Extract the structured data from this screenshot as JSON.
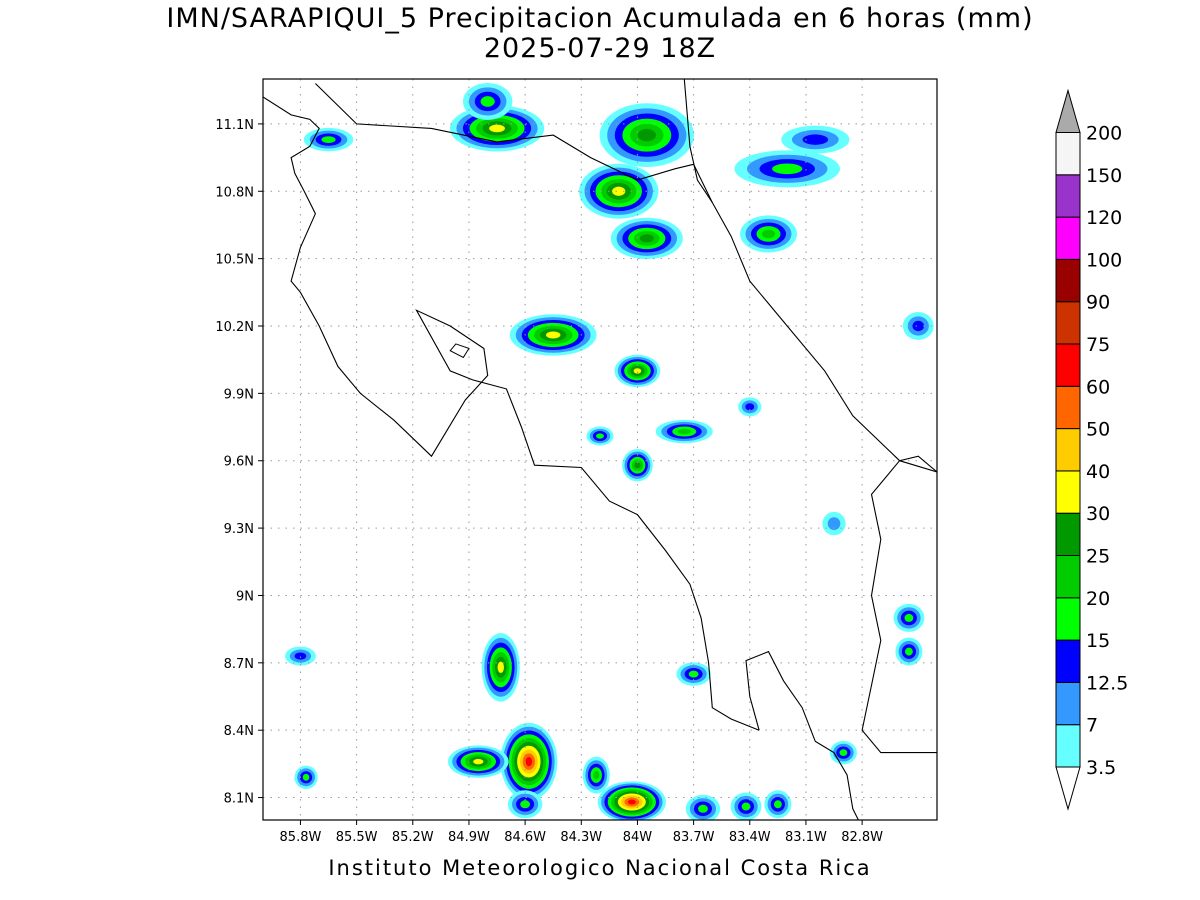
{
  "title_line1": "IMN/SARAPIQUI_5 Precipitacion Acumulada en 6 horas (mm)",
  "title_line2": "2025-07-29 18Z",
  "footer": "Instituto Meteorologico Nacional Costa Rica",
  "map": {
    "lon_min": -86.0,
    "lon_max": -82.4,
    "lat_min": 8.0,
    "lat_max": 11.3,
    "grid": "dotted",
    "lat_ticks": [
      {
        "lat": 11.1,
        "label": "11.1N"
      },
      {
        "lat": 10.8,
        "label": "10.8N"
      },
      {
        "lat": 10.5,
        "label": "10.5N"
      },
      {
        "lat": 10.2,
        "label": "10.2N"
      },
      {
        "lat": 9.9,
        "label": "9.9N"
      },
      {
        "lat": 9.6,
        "label": "9.6N"
      },
      {
        "lat": 9.3,
        "label": "9.3N"
      },
      {
        "lat": 9.0,
        "label": "9N"
      },
      {
        "lat": 8.7,
        "label": "8.7N"
      },
      {
        "lat": 8.4,
        "label": "8.4N"
      },
      {
        "lat": 8.1,
        "label": "8.1N"
      }
    ],
    "lon_ticks": [
      {
        "lon": -85.8,
        "label": "85.8W"
      },
      {
        "lon": -85.5,
        "label": "85.5W"
      },
      {
        "lon": -85.2,
        "label": "85.2W"
      },
      {
        "lon": -84.9,
        "label": "84.9W"
      },
      {
        "lon": -84.6,
        "label": "84.6W"
      },
      {
        "lon": -84.3,
        "label": "84.3W"
      },
      {
        "lon": -84.0,
        "label": "84W"
      },
      {
        "lon": -83.7,
        "label": "83.7W"
      },
      {
        "lon": -83.4,
        "label": "83.4W"
      },
      {
        "lon": -83.1,
        "label": "83.1W"
      },
      {
        "lon": -82.8,
        "label": "82.8W"
      }
    ]
  },
  "colorbar": {
    "levels": [
      {
        "label": "3.5",
        "color": "#66ffff"
      },
      {
        "label": "7",
        "color": "#3399ff"
      },
      {
        "label": "12.5",
        "color": "#0000ff"
      },
      {
        "label": "15",
        "color": "#00ff00"
      },
      {
        "label": "20",
        "color": "#00cc00"
      },
      {
        "label": "25",
        "color": "#009900"
      },
      {
        "label": "30",
        "color": "#ffff00"
      },
      {
        "label": "40",
        "color": "#ffcc00"
      },
      {
        "label": "50",
        "color": "#ff6600"
      },
      {
        "label": "60",
        "color": "#ff0000"
      },
      {
        "label": "75",
        "color": "#cc3300"
      },
      {
        "label": "90",
        "color": "#990000"
      },
      {
        "label": "100",
        "color": "#ff00ff"
      },
      {
        "label": "120",
        "color": "#9933cc"
      },
      {
        "label": "150",
        "color": "#f5f5f5"
      },
      {
        "label": "200",
        "color": "#aaaaaa"
      }
    ]
  },
  "precip_cells": [
    {
      "lon": -84.75,
      "lat": 11.08,
      "rx": 0.22,
      "ry": 0.08,
      "level": 6
    },
    {
      "lon": -84.8,
      "lat": 11.2,
      "rx": 0.1,
      "ry": 0.06,
      "level": 3
    },
    {
      "lon": -83.95,
      "lat": 11.05,
      "rx": 0.22,
      "ry": 0.12,
      "level": 5
    },
    {
      "lon": -84.1,
      "lat": 10.8,
      "rx": 0.18,
      "ry": 0.1,
      "level": 6
    },
    {
      "lon": -83.95,
      "lat": 10.59,
      "rx": 0.16,
      "ry": 0.07,
      "level": 5
    },
    {
      "lon": -83.3,
      "lat": 10.61,
      "rx": 0.12,
      "ry": 0.06,
      "level": 4
    },
    {
      "lon": -83.2,
      "lat": 10.9,
      "rx": 0.25,
      "ry": 0.06,
      "level": 3
    },
    {
      "lon": -83.05,
      "lat": 11.03,
      "rx": 0.15,
      "ry": 0.04,
      "level": 2
    },
    {
      "lon": -85.65,
      "lat": 11.03,
      "rx": 0.1,
      "ry": 0.03,
      "level": 3
    },
    {
      "lon": -84.45,
      "lat": 10.16,
      "rx": 0.2,
      "ry": 0.07,
      "level": 6
    },
    {
      "lon": -84.0,
      "lat": 10.0,
      "rx": 0.09,
      "ry": 0.05,
      "level": 6
    },
    {
      "lon": -83.75,
      "lat": 9.73,
      "rx": 0.12,
      "ry": 0.03,
      "level": 4
    },
    {
      "lon": -84.0,
      "lat": 9.58,
      "rx": 0.05,
      "ry": 0.05,
      "level": 5
    },
    {
      "lon": -84.2,
      "lat": 9.71,
      "rx": 0.04,
      "ry": 0.02,
      "level": 3
    },
    {
      "lon": -83.4,
      "lat": 9.84,
      "rx": 0.03,
      "ry": 0.02,
      "level": 2
    },
    {
      "lon": -84.73,
      "lat": 8.68,
      "rx": 0.07,
      "ry": 0.13,
      "level": 6
    },
    {
      "lon": -84.58,
      "lat": 8.26,
      "rx": 0.12,
      "ry": 0.15,
      "level": 9
    },
    {
      "lon": -84.03,
      "lat": 8.08,
      "rx": 0.15,
      "ry": 0.07,
      "level": 9
    },
    {
      "lon": -84.85,
      "lat": 8.26,
      "rx": 0.13,
      "ry": 0.05,
      "level": 6
    },
    {
      "lon": -84.22,
      "lat": 8.2,
      "rx": 0.04,
      "ry": 0.06,
      "level": 4
    },
    {
      "lon": -83.7,
      "lat": 8.65,
      "rx": 0.06,
      "ry": 0.03,
      "level": 3
    },
    {
      "lon": -82.9,
      "lat": 8.3,
      "rx": 0.04,
      "ry": 0.03,
      "level": 3
    },
    {
      "lon": -85.8,
      "lat": 8.73,
      "rx": 0.05,
      "ry": 0.02,
      "level": 2
    },
    {
      "lon": -85.77,
      "lat": 8.19,
      "rx": 0.03,
      "ry": 0.03,
      "level": 3
    },
    {
      "lon": -82.55,
      "lat": 8.9,
      "rx": 0.05,
      "ry": 0.04,
      "level": 3
    },
    {
      "lon": -82.55,
      "lat": 8.75,
      "rx": 0.04,
      "ry": 0.04,
      "level": 3
    },
    {
      "lon": -83.65,
      "lat": 8.05,
      "rx": 0.06,
      "ry": 0.04,
      "level": 3
    },
    {
      "lon": -83.42,
      "lat": 8.06,
      "rx": 0.05,
      "ry": 0.04,
      "level": 3
    },
    {
      "lon": -83.25,
      "lat": 8.07,
      "rx": 0.04,
      "ry": 0.04,
      "level": 3
    },
    {
      "lon": -82.5,
      "lat": 10.2,
      "rx": 0.05,
      "ry": 0.04,
      "level": 2
    },
    {
      "lon": -84.6,
      "lat": 8.07,
      "rx": 0.06,
      "ry": 0.04,
      "level": 3
    },
    {
      "lon": -82.95,
      "lat": 9.32,
      "rx": 0.03,
      "ry": 0.03,
      "level": 1
    }
  ],
  "coastlines": [
    [
      [
        -86.0,
        11.22
      ],
      [
        -85.85,
        11.14
      ],
      [
        -85.75,
        11.12
      ],
      [
        -85.7,
        11.08
      ],
      [
        -85.75,
        11.0
      ],
      [
        -85.85,
        10.95
      ],
      [
        -85.83,
        10.88
      ],
      [
        -85.78,
        10.8
      ],
      [
        -85.72,
        10.7
      ],
      [
        -85.8,
        10.55
      ],
      [
        -85.85,
        10.4
      ],
      [
        -85.8,
        10.35
      ],
      [
        -85.7,
        10.2
      ],
      [
        -85.6,
        10.02
      ],
      [
        -85.48,
        9.9
      ],
      [
        -85.3,
        9.78
      ],
      [
        -85.1,
        9.62
      ],
      [
        -84.92,
        9.87
      ],
      [
        -84.8,
        9.98
      ],
      [
        -84.82,
        10.1
      ],
      [
        -85.0,
        10.2
      ],
      [
        -85.18,
        10.27
      ],
      [
        -85.0,
        10.0
      ],
      [
        -84.88,
        9.96
      ],
      [
        -84.7,
        9.92
      ],
      [
        -84.62,
        9.75
      ],
      [
        -84.55,
        9.58
      ],
      [
        -84.3,
        9.57
      ],
      [
        -84.15,
        9.42
      ],
      [
        -84.0,
        9.36
      ],
      [
        -83.85,
        9.2
      ],
      [
        -83.72,
        9.05
      ],
      [
        -83.66,
        8.9
      ],
      [
        -83.62,
        8.7
      ],
      [
        -83.6,
        8.5
      ],
      [
        -83.5,
        8.45
      ],
      [
        -83.35,
        8.4
      ]
    ],
    [
      [
        -83.35,
        8.4
      ],
      [
        -83.4,
        8.55
      ],
      [
        -83.42,
        8.71
      ],
      [
        -83.3,
        8.75
      ],
      [
        -83.22,
        8.62
      ],
      [
        -83.12,
        8.5
      ],
      [
        -83.05,
        8.35
      ],
      [
        -82.95,
        8.3
      ],
      [
        -82.88,
        8.2
      ],
      [
        -82.85,
        8.05
      ],
      [
        -82.82,
        8.0
      ]
    ],
    [
      [
        -85.72,
        11.28
      ],
      [
        -85.5,
        11.1
      ],
      [
        -85.1,
        11.08
      ],
      [
        -84.75,
        11.02
      ],
      [
        -84.45,
        11.05
      ],
      [
        -84.25,
        10.95
      ],
      [
        -84.0,
        10.85
      ],
      [
        -83.8,
        10.9
      ],
      [
        -83.7,
        10.92
      ],
      [
        -83.6,
        10.75
      ]
    ],
    [
      [
        -83.75,
        11.3
      ],
      [
        -83.72,
        11.0
      ],
      [
        -83.68,
        10.85
      ],
      [
        -83.6,
        10.75
      ],
      [
        -83.5,
        10.6
      ],
      [
        -83.4,
        10.4
      ],
      [
        -83.2,
        10.2
      ],
      [
        -83.0,
        10.0
      ],
      [
        -82.85,
        9.8
      ],
      [
        -82.6,
        9.6
      ],
      [
        -82.4,
        9.55
      ]
    ],
    [
      [
        -82.4,
        9.55
      ],
      [
        -82.5,
        9.62
      ],
      [
        -82.6,
        9.6
      ],
      [
        -82.75,
        9.45
      ],
      [
        -82.7,
        9.25
      ],
      [
        -82.75,
        9.0
      ],
      [
        -82.7,
        8.8
      ],
      [
        -82.75,
        8.6
      ],
      [
        -82.8,
        8.4
      ],
      [
        -82.7,
        8.3
      ],
      [
        -82.4,
        8.3
      ]
    ]
  ]
}
